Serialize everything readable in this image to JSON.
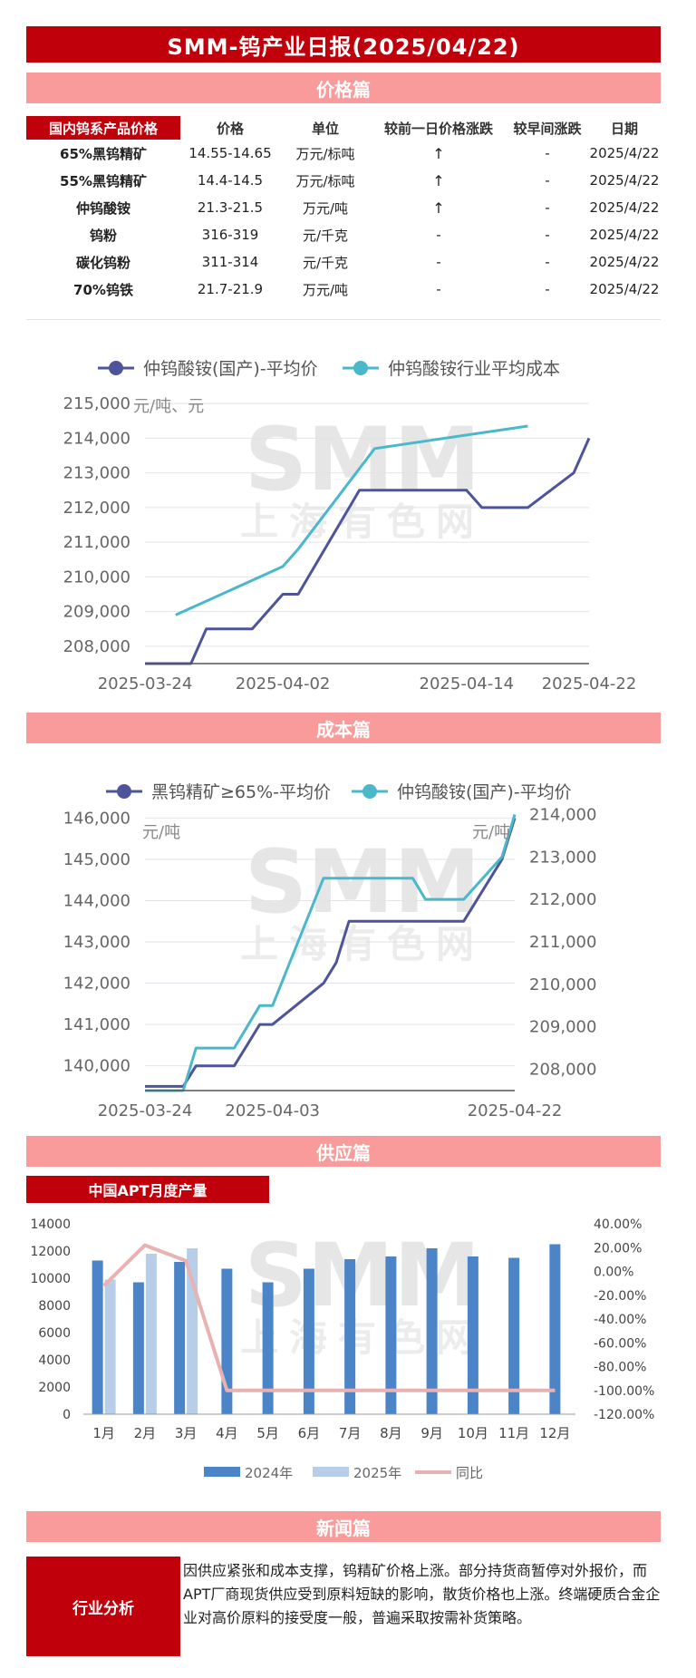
{
  "title": "SMM-钨产业日报(2025/04/22)",
  "sections": {
    "price": "价格篇",
    "cost": "成本篇",
    "supply": "供应篇",
    "news": "新闻篇"
  },
  "watermark": {
    "brand": "SMM",
    "cn": "上海有色网"
  },
  "price_table": {
    "headers": [
      "国内钨系产品价格",
      "价格",
      "单位",
      "较前一日价格涨跌",
      "较早间涨跌",
      "日期"
    ],
    "rows": [
      {
        "name": "65%黑钨精矿",
        "price": "14.55-14.65",
        "unit": "万元/标吨",
        "dod": "↑",
        "morning": "-",
        "date": "2025/4/22"
      },
      {
        "name": "55%黑钨精矿",
        "price": "14.4-14.5",
        "unit": "万元/标吨",
        "dod": "↑",
        "morning": "-",
        "date": "2025/4/22"
      },
      {
        "name": "仲钨酸铵",
        "price": "21.3-21.5",
        "unit": "万元/吨",
        "dod": "↑",
        "morning": "-",
        "date": "2025/4/22"
      },
      {
        "name": "钨粉",
        "price": "316-319",
        "unit": "元/千克",
        "dod": "-",
        "morning": "-",
        "date": "2025/4/22"
      },
      {
        "name": "碳化钨粉",
        "price": "311-314",
        "unit": "元/千克",
        "dod": "-",
        "morning": "-",
        "date": "2025/4/22"
      },
      {
        "name": "70%钨铁",
        "price": "21.7-21.9",
        "unit": "万元/吨",
        "dod": "-",
        "morning": "-",
        "date": "2025/4/22"
      }
    ]
  },
  "chart_data": [
    {
      "type": "line",
      "ylabel": "元/吨、元",
      "ylim": [
        207500,
        215500
      ],
      "yticks": [
        208000,
        209000,
        210000,
        211000,
        212000,
        213000,
        214000,
        215000
      ],
      "ytick_labels": [
        "208,000",
        "209,000",
        "210,000",
        "211,000",
        "212,000",
        "213,000",
        "214,000",
        "215,000"
      ],
      "xlim": [
        "2025-03-24",
        "2025-04-22"
      ],
      "xtick_labels": [
        "2025-03-24",
        "2025-04-02",
        "2025-04-14",
        "2025-04-22"
      ],
      "grid": true,
      "legend": "top",
      "colors": [
        "#4e5499",
        "#4ab8cb"
      ],
      "series": [
        {
          "name": "仲钨酸铵(国产)-平均价",
          "x": [
            "2025-03-24",
            "2025-03-25",
            "2025-03-26",
            "2025-03-27",
            "2025-03-28",
            "2025-03-31",
            "2025-04-01",
            "2025-04-02",
            "2025-04-03",
            "2025-04-07",
            "2025-04-08",
            "2025-04-09",
            "2025-04-10",
            "2025-04-11",
            "2025-04-14",
            "2025-04-15",
            "2025-04-16",
            "2025-04-17",
            "2025-04-18",
            "2025-04-21",
            "2025-04-22"
          ],
          "values": [
            207500,
            207500,
            207500,
            207500,
            208500,
            208500,
            209000,
            209500,
            209500,
            212500,
            212500,
            212500,
            212500,
            212500,
            212500,
            212000,
            212000,
            212000,
            212000,
            213000,
            214000
          ]
        },
        {
          "name": "仲钨酸铵行业平均成本",
          "x": [
            "2025-03-26",
            "2025-04-02",
            "2025-04-03",
            "2025-04-08",
            "2025-04-18"
          ],
          "values": [
            208900,
            210300,
            210800,
            213700,
            214350
          ]
        }
      ]
    },
    {
      "type": "line",
      "ylabel": "元/吨",
      "y2label": "元/吨",
      "ylim": [
        139400,
        146600
      ],
      "yticks": [
        140000,
        141000,
        142000,
        143000,
        144000,
        145000,
        146000
      ],
      "ytick_labels": [
        "140,000",
        "141,000",
        "142,000",
        "143,000",
        "144,000",
        "145,000",
        "146,000"
      ],
      "y2lim": [
        207500,
        214500
      ],
      "y2ticks": [
        208000,
        209000,
        210000,
        211000,
        212000,
        213000,
        214000
      ],
      "y2tick_labels": [
        "208,000",
        "209,000",
        "210,000",
        "211,000",
        "212,000",
        "213,000",
        "214,000"
      ],
      "xlim": [
        "2025-03-24",
        "2025-04-22"
      ],
      "xtick_labels": [
        "2025-03-24",
        "2025-04-03",
        "2025-04-22"
      ],
      "grid": true,
      "legend": "top",
      "colors": [
        "#4e5499",
        "#4ab8cb"
      ],
      "series": [
        {
          "name": "黑钨精矿≥65%-平均价",
          "axis": "left",
          "x": [
            "2025-03-24",
            "2025-03-25",
            "2025-03-26",
            "2025-03-27",
            "2025-03-28",
            "2025-03-31",
            "2025-04-01",
            "2025-04-02",
            "2025-04-03",
            "2025-04-07",
            "2025-04-08",
            "2025-04-09",
            "2025-04-10",
            "2025-04-11",
            "2025-04-14",
            "2025-04-15",
            "2025-04-16",
            "2025-04-17",
            "2025-04-18",
            "2025-04-21",
            "2025-04-22"
          ],
          "values": [
            139500,
            139500,
            139500,
            139500,
            140000,
            140000,
            140500,
            141000,
            141000,
            142000,
            142500,
            143500,
            143500,
            143500,
            143500,
            143500,
            143500,
            143500,
            143500,
            145000,
            146000
          ]
        },
        {
          "name": "仲钨酸铵(国产)-平均价",
          "axis": "right",
          "x": [
            "2025-03-24",
            "2025-03-25",
            "2025-03-26",
            "2025-03-27",
            "2025-03-28",
            "2025-03-31",
            "2025-04-01",
            "2025-04-02",
            "2025-04-03",
            "2025-04-07",
            "2025-04-08",
            "2025-04-09",
            "2025-04-10",
            "2025-04-11",
            "2025-04-14",
            "2025-04-15",
            "2025-04-16",
            "2025-04-17",
            "2025-04-18",
            "2025-04-21",
            "2025-04-22"
          ],
          "values": [
            207500,
            207500,
            207500,
            207500,
            208500,
            208500,
            209000,
            209500,
            209500,
            212500,
            212500,
            212500,
            212500,
            212500,
            212500,
            212000,
            212000,
            212000,
            212000,
            213000,
            214000
          ]
        }
      ]
    },
    {
      "type": "bar",
      "title": "中国APT月度产量",
      "categories": [
        "1月",
        "2月",
        "3月",
        "4月",
        "5月",
        "6月",
        "7月",
        "8月",
        "9月",
        "10月",
        "11月",
        "12月"
      ],
      "ylim": [
        0,
        14000
      ],
      "yticks": [
        0,
        2000,
        4000,
        6000,
        8000,
        10000,
        12000,
        14000
      ],
      "ytick_labels": [
        "0",
        "2000",
        "4000",
        "6000",
        "8000",
        "10000",
        "12000",
        "14000"
      ],
      "y2lim": [
        -120,
        40
      ],
      "y2ticks": [
        -120,
        -100,
        -80,
        -60,
        -40,
        -20,
        0,
        20,
        40
      ],
      "y2tick_labels": [
        "-120.00%",
        "-100.00%",
        "-80.00%",
        "-60.00%",
        "-40.00%",
        "-20.00%",
        "0.00%",
        "20.00%",
        "40.00%"
      ],
      "legend": "bottom",
      "colors": [
        "#4b85c7",
        "#b8cde7",
        "#e8b2b2"
      ],
      "series": [
        {
          "name": "2024年",
          "values": [
            11300,
            9700,
            11200,
            10700,
            9700,
            10700,
            11400,
            11600,
            12200,
            11600,
            11500,
            12500
          ]
        },
        {
          "name": "2025年",
          "values": [
            9900,
            11800,
            12200,
            null,
            null,
            null,
            null,
            null,
            null,
            null,
            null,
            null
          ]
        },
        {
          "name": "同比",
          "axis": "right",
          "values": [
            -12,
            22,
            9,
            -100,
            -100,
            -100,
            -100,
            -100,
            -100,
            -100,
            -100,
            -100
          ]
        }
      ]
    }
  ],
  "news": {
    "label": "行业分析",
    "text": "因供应紧张和成本支撑，钨精矿价格上涨。部分持货商暂停对外报价，而APT厂商现货供应受到原料短缺的影响，散货价格也上涨。终端硬质合金企业对高价原料的接受度一般，普遍采取按需补货策略。"
  }
}
